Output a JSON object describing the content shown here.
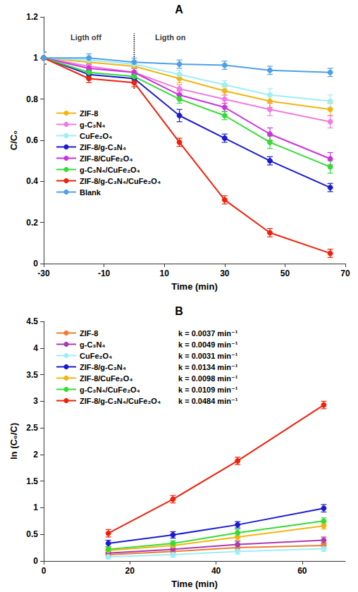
{
  "chart_data": [
    {
      "type": "line",
      "title": "A",
      "x_label": "Time (min)",
      "y_label": "C/C₀",
      "x": [
        -30,
        -15,
        0,
        15,
        30,
        45,
        65
      ],
      "xlim": [
        -30,
        70
      ],
      "xticks": [
        -30,
        -10,
        10,
        30,
        50,
        70
      ],
      "ylim": [
        0,
        1.2
      ],
      "yticks": [
        0,
        0.2,
        0.4,
        0.6,
        0.8,
        1,
        1.2
      ],
      "grid": false,
      "legend": "left",
      "annotations": [
        {
          "text": "Ligth off",
          "x": -16,
          "y": 1.1
        },
        {
          "text": "Ligth on",
          "x": 12,
          "y": 1.1
        }
      ],
      "divider": {
        "x": 0,
        "y": [
          0.85,
          1.12
        ]
      },
      "series": [
        {
          "name": "ZIF-8",
          "color": "#F2B50F",
          "marker": "circle",
          "line_style": "solid",
          "values": [
            1,
            0.98,
            0.96,
            0.9,
            0.84,
            0.79,
            0.75
          ],
          "errors": [
            0.03,
            0.02,
            0.02,
            0.02,
            0.02,
            0.03,
            0.03
          ]
        },
        {
          "name": "g-C₃N₄",
          "color": "#F07CDD",
          "marker": "circle",
          "line_style": "solid",
          "values": [
            1,
            0.96,
            0.93,
            0.85,
            0.8,
            0.75,
            0.69
          ],
          "errors": [
            0.03,
            0.02,
            0.02,
            0.02,
            0.02,
            0.03,
            0.03
          ]
        },
        {
          "name": "CuFe₂O₄",
          "color": "#9DEEF5",
          "marker": "circle",
          "line_style": "solid",
          "values": [
            1,
            0.99,
            0.97,
            0.92,
            0.87,
            0.82,
            0.79
          ],
          "errors": [
            0.03,
            0.02,
            0.02,
            0.02,
            0.02,
            0.03,
            0.03
          ]
        },
        {
          "name": "ZIF-8/g-C₃N₄",
          "color": "#1A1ACF",
          "marker": "circle",
          "line_style": "solid",
          "values": [
            1,
            0.92,
            0.9,
            0.72,
            0.61,
            0.5,
            0.37
          ],
          "errors": [
            0.03,
            0.02,
            0.02,
            0.03,
            0.02,
            0.02,
            0.02
          ]
        },
        {
          "name": "ZIF-8/CuFe₂O₄",
          "color": "#CC33DD",
          "marker": "circle",
          "line_style": "solid",
          "values": [
            1,
            0.95,
            0.93,
            0.82,
            0.76,
            0.63,
            0.51
          ],
          "errors": [
            0.03,
            0.02,
            0.02,
            0.02,
            0.02,
            0.03,
            0.03
          ]
        },
        {
          "name": "g-C₃N₄/CuFe₂O₄",
          "color": "#33DD33",
          "marker": "circle",
          "line_style": "solid",
          "values": [
            1,
            0.93,
            0.91,
            0.8,
            0.72,
            0.59,
            0.47
          ],
          "errors": [
            0.03,
            0.02,
            0.02,
            0.02,
            0.02,
            0.03,
            0.03
          ]
        },
        {
          "name": "ZIF-8/g-C₃N₄/CuFe₂O₄",
          "color": "#F0200A",
          "marker": "circle",
          "line_style": "solid",
          "values": [
            1,
            0.9,
            0.88,
            0.59,
            0.31,
            0.15,
            0.05
          ],
          "errors": [
            0.03,
            0.02,
            0.02,
            0.02,
            0.02,
            0.02,
            0.02
          ]
        },
        {
          "name": "Blank",
          "color": "#4F9FE8",
          "marker": "circle",
          "line_style": "solid",
          "values": [
            1,
            1,
            0.98,
            0.97,
            0.965,
            0.94,
            0.93
          ],
          "errors": [
            0.03,
            0.02,
            0.02,
            0.02,
            0.02,
            0.02,
            0.02
          ]
        }
      ]
    },
    {
      "type": "line",
      "title": "B",
      "x_label": "Time (min)",
      "y_label": "ln (C₀/C)",
      "x": [
        15,
        30,
        45,
        65
      ],
      "xlim": [
        0,
        70
      ],
      "xticks": [
        0,
        20,
        40,
        60
      ],
      "ylim": [
        0,
        4.5
      ],
      "yticks": [
        0,
        0.5,
        1,
        1.5,
        2,
        2.5,
        3,
        3.5,
        4,
        4.5
      ],
      "grid": false,
      "legend": "upper left",
      "series": [
        {
          "name": "ZIF-8",
          "k_label": "k = 0.0037 min⁻¹",
          "color": "#ED7D31",
          "marker": "circle",
          "line_style": "solid",
          "values": [
            0.12,
            0.18,
            0.25,
            0.29
          ],
          "errors": [
            0.05,
            0.05,
            0.05,
            0.05
          ]
        },
        {
          "name": "g-C₃N₄",
          "k_label": "k = 0.0049 min⁻¹",
          "color": "#A83CB0",
          "marker": "circle",
          "line_style": "solid",
          "values": [
            0.15,
            0.22,
            0.31,
            0.39
          ],
          "errors": [
            0.05,
            0.05,
            0.06,
            0.06
          ]
        },
        {
          "name": "CuFe₂O₄",
          "k_label": "k = 0.0031 min⁻¹",
          "color": "#9DEEF5",
          "marker": "circle",
          "line_style": "solid",
          "values": [
            0.08,
            0.12,
            0.18,
            0.23
          ],
          "errors": [
            0.04,
            0.05,
            0.05,
            0.05
          ]
        },
        {
          "name": "ZIF-8/g-C₃N₄",
          "k_label": "k = 0.0134 min⁻¹",
          "color": "#1A1ACF",
          "marker": "circle",
          "line_style": "solid",
          "values": [
            0.33,
            0.49,
            0.68,
            0.99
          ],
          "errors": [
            0.06,
            0.06,
            0.06,
            0.07
          ]
        },
        {
          "name": "ZIF-8/CuFe₂O₄",
          "k_label": "k = 0.0098 min⁻¹",
          "color": "#F2B50F",
          "marker": "circle",
          "line_style": "solid",
          "values": [
            0.2,
            0.29,
            0.45,
            0.66
          ],
          "errors": [
            0.05,
            0.05,
            0.06,
            0.06
          ]
        },
        {
          "name": "g-C₃N₄/CuFe₂O₄",
          "k_label": "k = 0.0109 min⁻¹",
          "color": "#33DD33",
          "marker": "circle",
          "line_style": "solid",
          "values": [
            0.22,
            0.33,
            0.53,
            0.75
          ],
          "errors": [
            0.05,
            0.05,
            0.06,
            0.06
          ]
        },
        {
          "name": "ZIF-8/g-C₃N₄/CuFe₂O₄",
          "k_label": "k = 0.0484 min⁻¹",
          "color": "#F0200A",
          "marker": "circle",
          "line_style": "solid",
          "values": [
            0.52,
            1.16,
            1.88,
            2.93
          ],
          "errors": [
            0.07,
            0.07,
            0.07,
            0.07
          ]
        }
      ]
    }
  ]
}
